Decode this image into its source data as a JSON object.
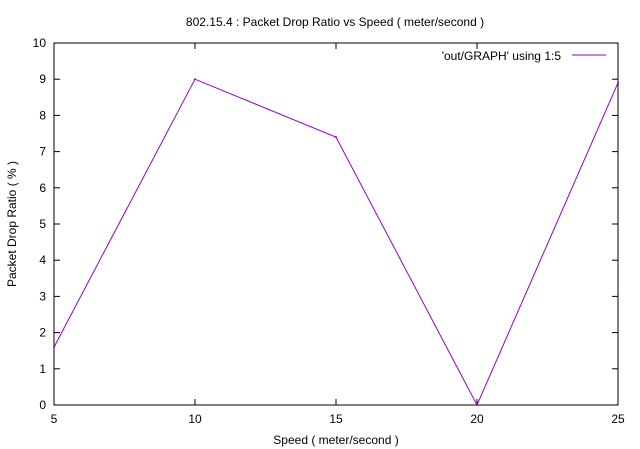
{
  "chart_data": {
    "type": "line",
    "title": "802.15.4 : Packet Drop Ratio vs Speed ( meter/second )",
    "xlabel": "Speed ( meter/second )",
    "ylabel": "Packet Drop Ratio ( % )",
    "xlim": [
      5,
      25
    ],
    "ylim": [
      0,
      10
    ],
    "x_ticks": [
      5,
      10,
      15,
      20,
      25
    ],
    "y_ticks": [
      0,
      1,
      2,
      3,
      4,
      5,
      6,
      7,
      8,
      9,
      10
    ],
    "grid": false,
    "legend_position": "top-right",
    "series": [
      {
        "name": "'out/GRAPH' using 1:5",
        "color": "#9400d3",
        "x": [
          5,
          10,
          15,
          20,
          25
        ],
        "y": [
          1.6,
          9.0,
          7.4,
          0.0,
          8.9
        ]
      }
    ]
  }
}
